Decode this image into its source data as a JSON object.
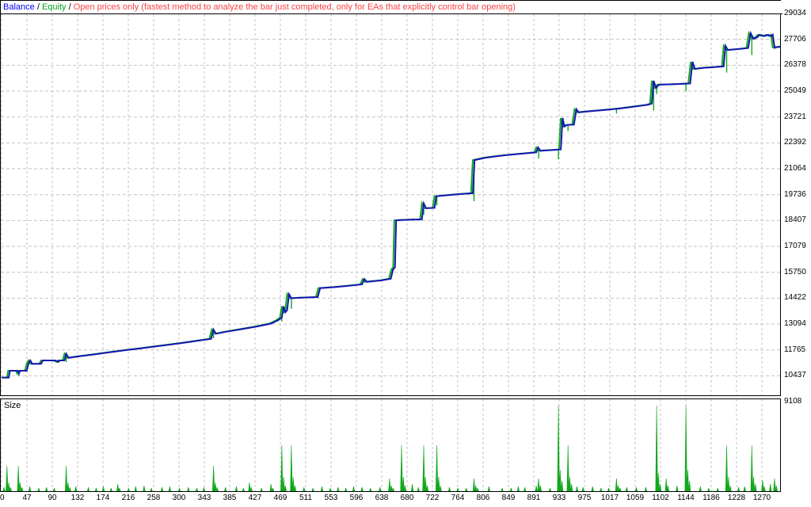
{
  "header": {
    "balance_label": "Balance",
    "separator": " / ",
    "equity_label": "Equity",
    "note": "Open prices only (fastest method to analyze the bar just completed, only for EAs that explicitly control bar opening)"
  },
  "size_panel": {
    "label": "Size"
  },
  "colors": {
    "balance_line": "#1616b6",
    "equity_line": "#11a81c",
    "size_bars": "#11a81c",
    "balance_legend": "#0000ff",
    "equity_legend": "#00a71e",
    "note_legend": "#f94141",
    "grid": "#c2c2c2",
    "border": "#000000",
    "background": "#ffffff"
  },
  "chart_data": {
    "type": "line",
    "title": "Strategy tester balance/equity graph with trade size subplot",
    "xlabel": "",
    "ylabel": "",
    "grid": "dashed",
    "x_ticks": [
      0,
      47,
      90,
      132,
      174,
      216,
      258,
      300,
      343,
      385,
      427,
      469,
      511,
      553,
      596,
      638,
      680,
      722,
      764,
      806,
      849,
      891,
      933,
      975,
      1017,
      1059,
      1102,
      1144,
      1186,
      1228,
      1270
    ],
    "y_ticks": [
      29034,
      27706,
      26378,
      25049,
      23721,
      22392,
      21064,
      19736,
      18407,
      17079,
      15750,
      14422,
      13094,
      11765,
      10437,
      9108
    ],
    "x_range": [
      0,
      1302
    ],
    "y_range": [
      9108,
      29034
    ],
    "series": [
      {
        "name": "Balance",
        "points": [
          [
            0,
            10350
          ],
          [
            12,
            10350
          ],
          [
            14,
            10700
          ],
          [
            27,
            10700
          ],
          [
            29,
            10560
          ],
          [
            31,
            10700
          ],
          [
            42,
            10700
          ],
          [
            45,
            11080
          ],
          [
            48,
            11230
          ],
          [
            51,
            11060
          ],
          [
            66,
            11060
          ],
          [
            69,
            11230
          ],
          [
            90,
            11230
          ],
          [
            95,
            11150
          ],
          [
            97,
            11230
          ],
          [
            105,
            11230
          ],
          [
            108,
            11570
          ],
          [
            112,
            11360
          ],
          [
            130,
            11440
          ],
          [
            155,
            11540
          ],
          [
            180,
            11650
          ],
          [
            205,
            11750
          ],
          [
            230,
            11840
          ],
          [
            255,
            11940
          ],
          [
            280,
            12040
          ],
          [
            305,
            12140
          ],
          [
            330,
            12250
          ],
          [
            350,
            12340
          ],
          [
            354,
            12820
          ],
          [
            358,
            12600
          ],
          [
            375,
            12700
          ],
          [
            400,
            12830
          ],
          [
            425,
            12960
          ],
          [
            450,
            13120
          ],
          [
            462,
            13300
          ],
          [
            468,
            13430
          ],
          [
            471,
            14010
          ],
          [
            474,
            13700
          ],
          [
            477,
            13820
          ],
          [
            480,
            14630
          ],
          [
            484,
            14420
          ],
          [
            500,
            14450
          ],
          [
            528,
            14480
          ],
          [
            532,
            14940
          ],
          [
            555,
            14990
          ],
          [
            580,
            15060
          ],
          [
            602,
            15130
          ],
          [
            606,
            15410
          ],
          [
            610,
            15260
          ],
          [
            635,
            15340
          ],
          [
            650,
            15420
          ],
          [
            654,
            15910
          ],
          [
            657,
            16000
          ],
          [
            659,
            18420
          ],
          [
            672,
            18440
          ],
          [
            688,
            18460
          ],
          [
            702,
            18470
          ],
          [
            705,
            19290
          ],
          [
            709,
            19040
          ],
          [
            723,
            19060
          ],
          [
            726,
            19650
          ],
          [
            745,
            19710
          ],
          [
            768,
            19770
          ],
          [
            787,
            19810
          ],
          [
            790,
            21510
          ],
          [
            808,
            21630
          ],
          [
            832,
            21730
          ],
          [
            858,
            21810
          ],
          [
            880,
            21870
          ],
          [
            893,
            21910
          ],
          [
            896,
            22160
          ],
          [
            900,
            21990
          ],
          [
            918,
            22020
          ],
          [
            934,
            22060
          ],
          [
            937,
            23670
          ],
          [
            940,
            23230
          ],
          [
            944,
            23310
          ],
          [
            956,
            23330
          ],
          [
            960,
            24120
          ],
          [
            964,
            23960
          ],
          [
            985,
            24020
          ],
          [
            1010,
            24090
          ],
          [
            1035,
            24170
          ],
          [
            1060,
            24270
          ],
          [
            1080,
            24350
          ],
          [
            1086,
            24410
          ],
          [
            1089,
            25580
          ],
          [
            1093,
            25210
          ],
          [
            1098,
            25380
          ],
          [
            1125,
            25410
          ],
          [
            1150,
            25440
          ],
          [
            1154,
            26550
          ],
          [
            1158,
            26190
          ],
          [
            1175,
            26250
          ],
          [
            1195,
            26290
          ],
          [
            1206,
            26320
          ],
          [
            1209,
            27370
          ],
          [
            1213,
            27160
          ],
          [
            1232,
            27210
          ],
          [
            1247,
            27260
          ],
          [
            1251,
            28020
          ],
          [
            1256,
            27730
          ],
          [
            1262,
            27810
          ],
          [
            1266,
            27940
          ],
          [
            1274,
            27870
          ],
          [
            1280,
            27940
          ],
          [
            1286,
            27870
          ],
          [
            1288,
            27940
          ],
          [
            1291,
            27290
          ],
          [
            1302,
            27330
          ]
        ]
      },
      {
        "name": "Equity",
        "shift_trades": -3,
        "dips": [
          [
            29,
            10430
          ],
          [
            108,
            11150
          ],
          [
            354,
            12370
          ],
          [
            468,
            13230
          ],
          [
            484,
            13880
          ],
          [
            648,
            15430
          ],
          [
            705,
            18700
          ],
          [
            727,
            19180
          ],
          [
            789,
            19400
          ],
          [
            897,
            21600
          ],
          [
            930,
            21550
          ],
          [
            946,
            23000
          ],
          [
            1027,
            23900
          ],
          [
            1089,
            24050
          ],
          [
            1094,
            24900
          ],
          [
            1143,
            25050
          ],
          [
            1211,
            26000
          ],
          [
            1253,
            26900
          ],
          [
            1291,
            27200
          ]
        ]
      }
    ],
    "size_bars": [
      [
        4,
        5
      ],
      [
        9,
        32
      ],
      [
        12,
        11
      ],
      [
        15,
        5
      ],
      [
        28,
        32
      ],
      [
        31,
        11
      ],
      [
        34,
        5
      ],
      [
        47,
        6
      ],
      [
        62,
        4
      ],
      [
        75,
        5
      ],
      [
        88,
        4
      ],
      [
        108,
        32
      ],
      [
        111,
        11
      ],
      [
        114,
        5
      ],
      [
        124,
        6
      ],
      [
        145,
        5
      ],
      [
        158,
        4
      ],
      [
        170,
        6
      ],
      [
        183,
        4
      ],
      [
        194,
        9
      ],
      [
        197,
        4
      ],
      [
        212,
        4
      ],
      [
        224,
        6
      ],
      [
        238,
        7
      ],
      [
        250,
        4
      ],
      [
        268,
        5
      ],
      [
        281,
        6
      ],
      [
        297,
        4
      ],
      [
        312,
        5
      ],
      [
        326,
        4
      ],
      [
        338,
        5
      ],
      [
        354,
        32
      ],
      [
        357,
        11
      ],
      [
        360,
        5
      ],
      [
        374,
        5
      ],
      [
        392,
        6
      ],
      [
        404,
        4
      ],
      [
        414,
        11
      ],
      [
        417,
        5
      ],
      [
        434,
        4
      ],
      [
        450,
        9
      ],
      [
        453,
        4
      ],
      [
        468,
        58
      ],
      [
        471,
        18
      ],
      [
        474,
        7
      ],
      [
        484,
        58
      ],
      [
        487,
        18
      ],
      [
        490,
        7
      ],
      [
        505,
        5
      ],
      [
        520,
        4
      ],
      [
        535,
        6
      ],
      [
        549,
        4
      ],
      [
        562,
        5
      ],
      [
        575,
        4
      ],
      [
        588,
        6
      ],
      [
        602,
        5
      ],
      [
        616,
        4
      ],
      [
        632,
        5
      ],
      [
        648,
        16
      ],
      [
        651,
        7
      ],
      [
        654,
        4
      ],
      [
        668,
        58
      ],
      [
        671,
        18
      ],
      [
        674,
        7
      ],
      [
        686,
        9
      ],
      [
        696,
        5
      ],
      [
        705,
        58
      ],
      [
        708,
        18
      ],
      [
        711,
        7
      ],
      [
        727,
        58
      ],
      [
        730,
        18
      ],
      [
        733,
        7
      ],
      [
        748,
        5
      ],
      [
        762,
        4
      ],
      [
        776,
        4
      ],
      [
        789,
        16
      ],
      [
        792,
        7
      ],
      [
        795,
        4
      ],
      [
        814,
        6
      ],
      [
        836,
        4
      ],
      [
        851,
        4
      ],
      [
        863,
        6
      ],
      [
        874,
        5
      ],
      [
        893,
        7
      ],
      [
        897,
        16
      ],
      [
        900,
        7
      ],
      [
        916,
        4
      ],
      [
        930,
        108
      ],
      [
        933,
        27
      ],
      [
        936,
        13
      ],
      [
        946,
        58
      ],
      [
        949,
        18
      ],
      [
        952,
        9
      ],
      [
        961,
        6
      ],
      [
        971,
        5
      ],
      [
        987,
        6
      ],
      [
        1001,
        4
      ],
      [
        1014,
        4
      ],
      [
        1027,
        16
      ],
      [
        1030,
        7
      ],
      [
        1033,
        4
      ],
      [
        1044,
        5
      ],
      [
        1060,
        5
      ],
      [
        1076,
        5
      ],
      [
        1094,
        108
      ],
      [
        1097,
        23
      ],
      [
        1100,
        9
      ],
      [
        1110,
        16
      ],
      [
        1113,
        7
      ],
      [
        1128,
        7
      ],
      [
        1143,
        108
      ],
      [
        1146,
        27
      ],
      [
        1149,
        13
      ],
      [
        1167,
        6
      ],
      [
        1181,
        4
      ],
      [
        1196,
        4
      ],
      [
        1211,
        58
      ],
      [
        1214,
        18
      ],
      [
        1217,
        7
      ],
      [
        1231,
        5
      ],
      [
        1241,
        6
      ],
      [
        1253,
        58
      ],
      [
        1256,
        18
      ],
      [
        1259,
        9
      ],
      [
        1271,
        14
      ],
      [
        1274,
        6
      ],
      [
        1284,
        9
      ],
      [
        1291,
        16
      ],
      [
        1294,
        7
      ]
    ]
  }
}
